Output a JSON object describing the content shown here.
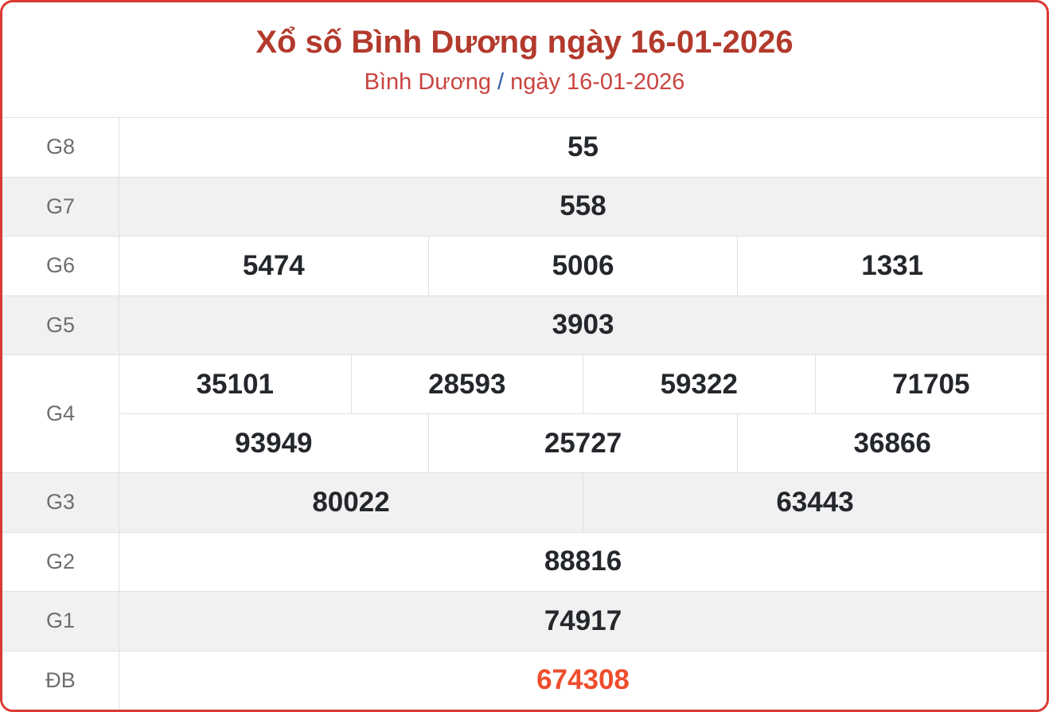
{
  "header": {
    "title": "Xổ số Bình Dương ngày 16-01-2026",
    "breadcrumb": {
      "region": "Bình Dương",
      "separator": "/",
      "date": "ngày 16-01-2026"
    }
  },
  "colors": {
    "border_red": "#d93a32",
    "title_red": "#b23a2c",
    "link_red": "#c94440",
    "separator_blue": "#2f5ea7",
    "special_orange": "#ee4d2d",
    "row_alt_gray": "#f1f1f1",
    "grid_gray": "#e0e0e0",
    "label_gray": "#6e6e6e",
    "value_dark": "#24272b"
  },
  "table": {
    "rows": [
      {
        "label": "G8",
        "values": [
          "55"
        ]
      },
      {
        "label": "G7",
        "values": [
          "558"
        ]
      },
      {
        "label": "G6",
        "values": [
          "5474",
          "5006",
          "1331"
        ]
      },
      {
        "label": "G5",
        "values": [
          "3903"
        ]
      },
      {
        "label": "G4",
        "lines": [
          [
            "35101",
            "28593",
            "59322",
            "71705"
          ],
          [
            "93949",
            "25727",
            "36866"
          ]
        ]
      },
      {
        "label": "G3",
        "values": [
          "80022",
          "63443"
        ]
      },
      {
        "label": "G2",
        "values": [
          "88816"
        ]
      },
      {
        "label": "G1",
        "values": [
          "74917"
        ]
      },
      {
        "label": "ĐB",
        "values": [
          "674308"
        ],
        "highlight": true
      }
    ]
  }
}
